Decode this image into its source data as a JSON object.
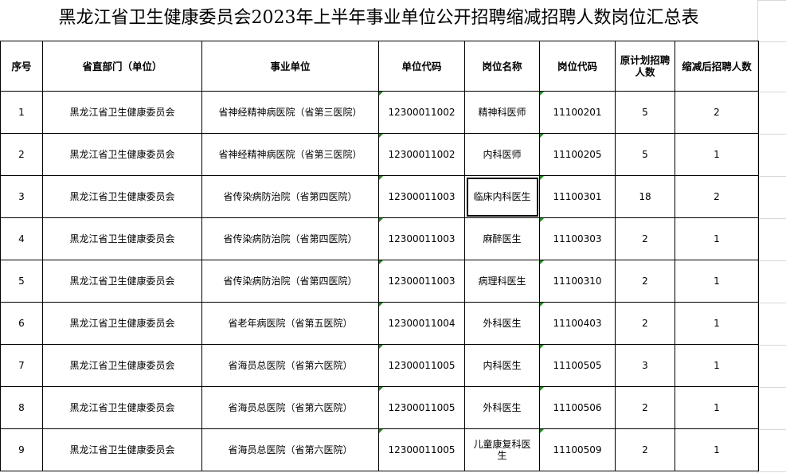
{
  "title": "黑龙江省卫生健康委员会2023年上半年事业单位公开招聘缩减招聘人数岗位汇总表",
  "headers": [
    "序号",
    "省直部门（单位）",
    "事业单位",
    "单位代码",
    "岗位名称",
    "岗位代码",
    "原计划招聘人数",
    "缩减后招聘人数"
  ],
  "rows": [
    [
      "1",
      "黑龙江省卫生健康委员会",
      "省神经精神病医院（省第三医院）",
      "12300011002",
      "精神科医师",
      "11100201",
      "5",
      "2"
    ],
    [
      "2",
      "黑龙江省卫生健康委员会",
      "省神经精神病医院（省第三医院）",
      "12300011002",
      "内科医师",
      "11100205",
      "5",
      "1"
    ],
    [
      "3",
      "黑龙江省卫生健康委员会",
      "省传染病防治院（省第四医院）",
      "12300011003",
      "临床内科医生",
      "11100301",
      "18",
      "2"
    ],
    [
      "4",
      "黑龙江省卫生健康委员会",
      "省传染病防治院（省第四医院）",
      "12300011003",
      "麻醉医生",
      "11100303",
      "2",
      "1"
    ],
    [
      "5",
      "黑龙江省卫生健康委员会",
      "省传染病防治院（省第四医院）",
      "12300011003",
      "病理科医生",
      "11100310",
      "2",
      "1"
    ],
    [
      "6",
      "黑龙江省卫生健康委员会",
      "省老年病医院（省第五医院）",
      "12300011004",
      "外科医生",
      "11100403",
      "2",
      "1"
    ],
    [
      "7",
      "黑龙江省卫生健康委员会",
      "省海员总医院（省第六医院）",
      "12300011005",
      "内科医生",
      "11100505",
      "3",
      "1"
    ],
    [
      "8",
      "黑龙江省卫生健康委员会",
      "省海员总医院（省第六医院）",
      "12300011005",
      "外科医生",
      "11100506",
      "2",
      "1"
    ],
    [
      "9",
      "黑龙江省卫生健康委员会",
      "省海员总医院（省第六医院）",
      "12300011005",
      "儿童康复科医生",
      "11100509",
      "2",
      "1"
    ]
  ],
  "selected_cell": {
    "row": 3,
    "column": "岗位名称"
  },
  "colors": {
    "error_indicator": "#1a8a1a",
    "grid": "#d8d8d8"
  }
}
